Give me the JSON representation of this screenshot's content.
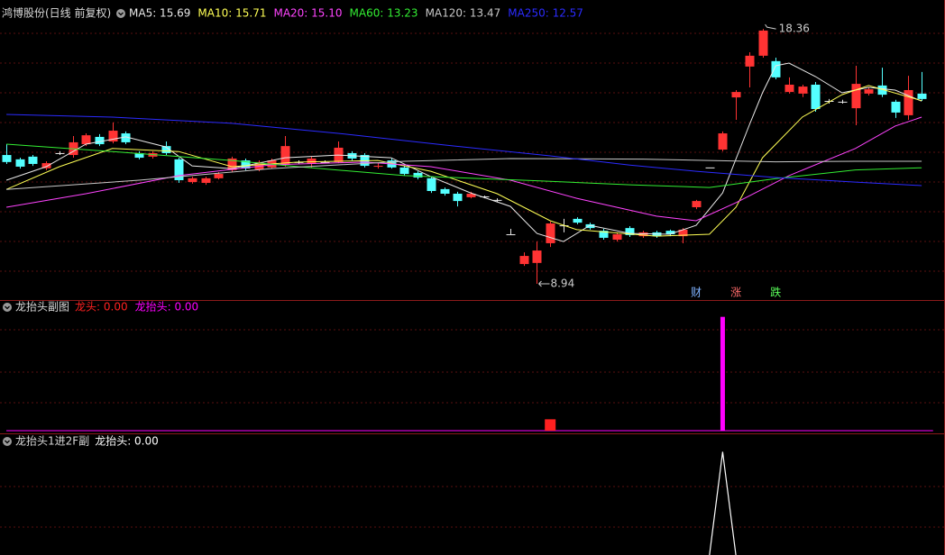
{
  "chart_data": [
    {
      "type": "candlestick",
      "title": "鸿博股份(日线 前复权)",
      "xlim": [
        -0.48,
        70.76
      ],
      "ylim": [
        8.34,
        19.43
      ],
      "up_color": "#ff3333",
      "down_color": "#54ffff",
      "flat_color": "#e8e8e8",
      "open": [
        13.7,
        13.54,
        13.64,
        13.21,
        13.77,
        13.7,
        14.1,
        14.37,
        14.2,
        14.5,
        13.77,
        13.64,
        14.03,
        13.54,
        12.7,
        12.67,
        12.84,
        13.14,
        13.5,
        13.17,
        13.24,
        13.34,
        13.44,
        13.37,
        13.44,
        13.44,
        13.77,
        13.7,
        13.27,
        13.5,
        13.24,
        13.04,
        12.84,
        12.44,
        12.27,
        12.14,
        12.17,
        12.04,
        10.77,
        9.67,
        9.71,
        10.44,
        11.1,
        11.34,
        11.14,
        10.9,
        10.57,
        11.0,
        10.7,
        10.84,
        10.9,
        10.7,
        11.77,
        13.24,
        13.9,
        15.83,
        16.97,
        17.37,
        17.17,
        16.03,
        15.97,
        16.3,
        15.7,
        15.67,
        15.43,
        15.97,
        16.27,
        15.67,
        15.17,
        15.97
      ],
      "high": [
        14.1,
        13.6,
        13.7,
        13.47,
        13.84,
        14.4,
        14.5,
        14.47,
        14.9,
        14.57,
        13.84,
        13.84,
        14.2,
        13.6,
        12.9,
        12.9,
        13.07,
        13.64,
        13.57,
        13.5,
        13.57,
        14.4,
        13.5,
        13.64,
        13.5,
        14.2,
        13.84,
        13.77,
        13.4,
        13.57,
        13.3,
        13.1,
        12.9,
        12.5,
        12.34,
        12.34,
        12.2,
        12.1,
        10.97,
        10.1,
        10.5,
        11.24,
        11.34,
        11.4,
        11.2,
        10.97,
        10.84,
        11.07,
        10.9,
        10.9,
        10.94,
        11.0,
        12.04,
        13.24,
        14.57,
        16.1,
        17.5,
        18.36,
        17.3,
        16.57,
        16.3,
        16.4,
        15.77,
        15.74,
        17.0,
        16.2,
        16.93,
        15.74,
        16.63,
        16.77
      ],
      "low": [
        13.37,
        13.2,
        13.3,
        13.14,
        13.7,
        13.6,
        14.03,
        14.03,
        14.13,
        14.1,
        13.54,
        13.57,
        13.7,
        12.67,
        12.64,
        12.6,
        12.8,
        13.07,
        13.14,
        13.1,
        13.2,
        13.27,
        13.37,
        13.24,
        13.4,
        13.4,
        13.5,
        13.24,
        13.2,
        13.2,
        12.94,
        12.8,
        12.3,
        12.2,
        11.8,
        12.1,
        12.1,
        11.97,
        10.77,
        9.6,
        8.94,
        10.3,
        10.84,
        11.14,
        10.94,
        10.57,
        10.5,
        10.67,
        10.64,
        10.64,
        10.7,
        10.44,
        11.7,
        13.24,
        13.84,
        15.0,
        16.2,
        17.3,
        16.5,
        15.97,
        15.84,
        15.3,
        15.6,
        15.6,
        14.8,
        15.9,
        15.84,
        15.07,
        15.0,
        15.7
      ],
      "close": [
        13.44,
        13.27,
        13.37,
        13.4,
        13.77,
        14.17,
        14.43,
        14.1,
        14.6,
        14.17,
        13.6,
        13.77,
        13.77,
        12.77,
        12.84,
        12.84,
        13.0,
        13.57,
        13.2,
        13.44,
        13.5,
        14.03,
        13.44,
        13.57,
        13.44,
        13.97,
        13.57,
        13.3,
        13.3,
        13.24,
        13.0,
        12.87,
        12.37,
        12.27,
        12.0,
        12.27,
        12.17,
        12.04,
        10.77,
        9.97,
        10.17,
        11.17,
        11.1,
        11.2,
        11.0,
        10.64,
        10.77,
        10.74,
        10.84,
        10.7,
        10.77,
        10.94,
        12.0,
        13.24,
        14.5,
        16.03,
        17.37,
        18.3,
        16.57,
        16.3,
        16.23,
        15.4,
        15.7,
        15.67,
        16.33,
        16.13,
        15.93,
        15.27,
        16.1,
        15.77
      ],
      "series": [
        {
          "label": "MA5: 15.69",
          "color": "#e8e8e8",
          "x": [
            0,
            3,
            6,
            9,
            12,
            14,
            17,
            21,
            25,
            29,
            32,
            35,
            38,
            40,
            42,
            44,
            47,
            50,
            52,
            54,
            56,
            57,
            58,
            59,
            61,
            63,
            65,
            67,
            69
          ],
          "values": [
            12.77,
            13.27,
            14.1,
            14.37,
            14.0,
            13.3,
            13.2,
            13.6,
            13.7,
            13.6,
            12.9,
            12.3,
            11.8,
            10.8,
            10.5,
            11.1,
            10.8,
            10.77,
            11.1,
            12.3,
            14.8,
            16.0,
            17.0,
            17.1,
            16.6,
            16.0,
            16.2,
            16.1,
            15.69
          ]
        },
        {
          "label": "MA10: 15.71",
          "color": "#ffff55",
          "x": [
            0,
            4,
            8,
            13,
            17,
            22,
            28,
            32,
            37,
            41,
            43,
            49,
            53,
            55,
            57,
            60,
            63,
            65,
            69
          ],
          "values": [
            12.43,
            13.27,
            13.94,
            13.83,
            13.27,
            13.44,
            13.5,
            13.1,
            12.27,
            11.27,
            10.94,
            10.7,
            10.77,
            11.77,
            13.6,
            15.1,
            15.93,
            16.27,
            15.71
          ]
        },
        {
          "label": "MA20: 15.10",
          "color": "#ff44ff",
          "x": [
            0,
            6,
            13,
            20,
            27,
            32,
            38,
            43,
            49,
            52,
            55,
            59,
            64,
            67,
            69
          ],
          "values": [
            11.77,
            12.27,
            12.94,
            13.34,
            13.44,
            13.27,
            12.77,
            12.1,
            11.44,
            11.27,
            11.94,
            12.94,
            13.94,
            14.77,
            15.1
          ]
        },
        {
          "label": "MA60: 13.23",
          "color": "#33ee33",
          "x": [
            0,
            8,
            17,
            22,
            30,
            40,
            47,
            53,
            58,
            64,
            69
          ],
          "values": [
            14.1,
            13.83,
            13.5,
            13.27,
            12.94,
            12.75,
            12.6,
            12.5,
            12.83,
            13.15,
            13.23
          ]
        },
        {
          "label": "MA120: 13.47",
          "color": "#c8c8c8",
          "x": [
            0,
            10,
            20,
            30,
            38,
            48,
            58,
            64,
            69
          ],
          "values": [
            12.43,
            12.77,
            13.2,
            13.47,
            13.57,
            13.55,
            13.45,
            13.47,
            13.47
          ]
        },
        {
          "label": "MA250: 12.57",
          "color": "#2b2bff",
          "x": [
            0,
            8,
            17,
            25,
            33,
            41,
            47,
            52,
            58,
            64,
            69
          ],
          "values": [
            15.2,
            15.1,
            14.87,
            14.5,
            14.07,
            13.67,
            13.33,
            13.1,
            12.87,
            12.7,
            12.57
          ]
        }
      ],
      "markers": [
        {
          "x": 52,
          "label": "财",
          "color": "#7fb2ff"
        },
        {
          "x": 55,
          "label": "涨",
          "color": "#ff6b6b"
        },
        {
          "x": 58,
          "label": "跌",
          "color": "#5aff5a"
        }
      ]
    },
    {
      "type": "bar",
      "title": "龙抬头副图",
      "xlim": [
        -0.48,
        70.76
      ],
      "ylim": [
        0,
        1.14
      ],
      "series": [
        {
          "label": "龙头: 0.00",
          "color": "#ff2020",
          "x": [
            41
          ],
          "values": [
            0.1
          ]
        },
        {
          "label": "龙抬头: 0.00",
          "color": "#ff00ff",
          "x": [
            54
          ],
          "values": [
            1
          ]
        }
      ]
    },
    {
      "type": "line",
      "title": "龙抬头1进2F副",
      "xlim": [
        -0.48,
        70.76
      ],
      "ylim": [
        0,
        1.16
      ],
      "series": [
        {
          "label": "龙抬头: 0.00",
          "color": "#ffffff",
          "x": [
            53,
            54,
            55
          ],
          "values": [
            0,
            1,
            0
          ]
        }
      ]
    }
  ]
}
